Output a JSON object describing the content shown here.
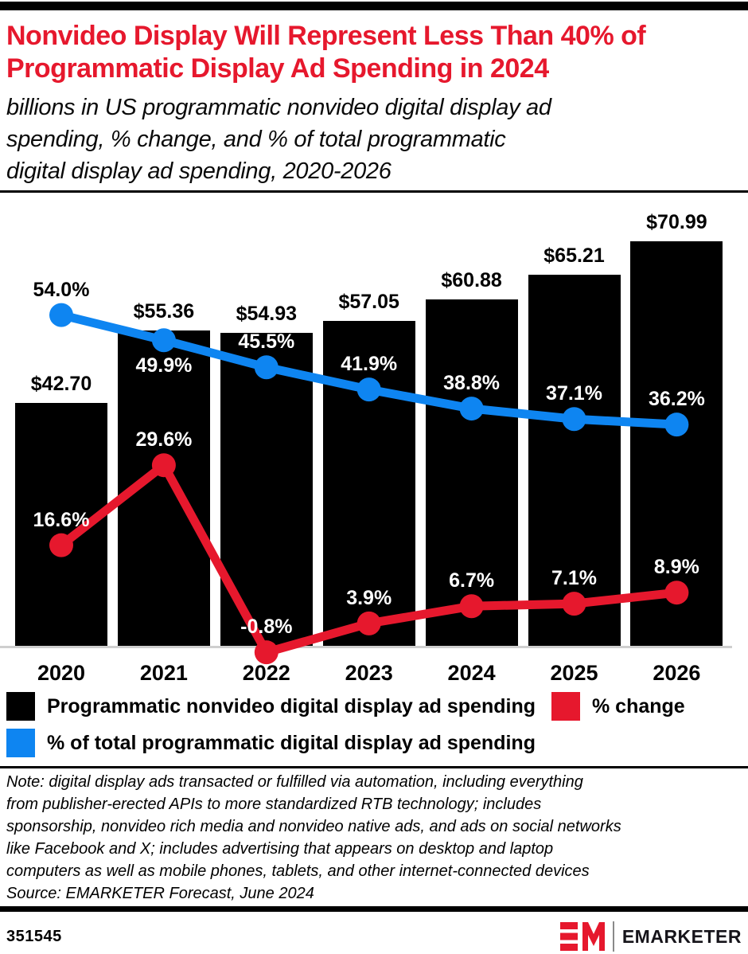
{
  "page": {
    "title_lines": [
      "Nonvideo Display Will Represent Less Than 40% of",
      "Programmatic Display Ad Spending in 2024"
    ],
    "subtitle_lines": [
      "billions in US programmatic nonvideo digital display ad",
      "spending, % change, and % of total programmatic",
      "digital display ad spending, 2020-2026"
    ],
    "note_lines": [
      "Note: digital display ads transacted or fulfilled via automation, including everything",
      "from publisher-erected APIs to more standardized RTB technology; includes",
      "sponsorship, nonvideo rich media and nonvideo native ads, and ads on social networks",
      "like Facebook and X; includes advertising that appears on desktop and laptop",
      "computers as well as mobile phones, tablets, and other internet-connected devices"
    ],
    "source": "Source: EMARKETER Forecast, June 2024",
    "footer": {
      "chart_id": "351545",
      "brand": "EMARKETER",
      "logo_mark": "EM"
    }
  },
  "colors": {
    "accent_red": "#e6182d",
    "accent_blue": "#0e85f1",
    "bar_black": "#000000",
    "baseline_gray": "#cfcfcf"
  },
  "legend": [
    {
      "label": "Programmatic nonvideo digital display ad spending",
      "color": "#000000"
    },
    {
      "label": "% change",
      "color": "#e6182d"
    },
    {
      "label": "% of total programmatic digital display ad spending",
      "color": "#0e85f1"
    }
  ],
  "chart_data": {
    "type": "bar",
    "subtype": "bar+line combo",
    "title": "Nonvideo Display Will Represent Less Than 40% of Programmatic Display Ad Spending in 2024",
    "xlabel": "",
    "ylabel": "",
    "categories": [
      "2020",
      "2021",
      "2022",
      "2023",
      "2024",
      "2025",
      "2026"
    ],
    "series": [
      {
        "name": "Programmatic nonvideo digital display ad spending",
        "type": "bar",
        "unit": "billions USD",
        "color": "#000000",
        "values": [
          42.7,
          55.36,
          54.93,
          57.05,
          60.88,
          65.21,
          70.99
        ],
        "labels": [
          "$42.70",
          "$55.36",
          "$54.93",
          "$57.05",
          "$60.88",
          "$65.21",
          "$70.99"
        ]
      },
      {
        "name": "% change",
        "type": "line",
        "unit": "%",
        "color": "#e6182d",
        "values": [
          16.6,
          29.6,
          -0.8,
          3.9,
          6.7,
          7.1,
          8.9
        ],
        "labels": [
          "16.6%",
          "29.6%",
          "-0.8%",
          "3.9%",
          "6.7%",
          "7.1%",
          "8.9%"
        ],
        "label_dy": [
          -31,
          -31,
          -31,
          -31,
          -31,
          -31,
          -31
        ]
      },
      {
        "name": "% of total programmatic digital display ad spending",
        "type": "line",
        "unit": "%",
        "color": "#0e85f1",
        "values": [
          54.0,
          49.9,
          45.5,
          41.9,
          38.8,
          37.1,
          36.2
        ],
        "labels": [
          "54.0%",
          "49.9%",
          "45.5%",
          "41.9%",
          "38.8%",
          "37.1%",
          "36.2%"
        ],
        "label_dy": [
          -31,
          33,
          -31,
          -31,
          -31,
          -31,
          -31
        ]
      }
    ],
    "axes": {
      "bar_ylim": [
        0,
        72
      ],
      "pct_axis_zero_at_baseline": true,
      "gridlines": false,
      "axis_ticks_visible": false,
      "legend_position": "bottom"
    }
  }
}
